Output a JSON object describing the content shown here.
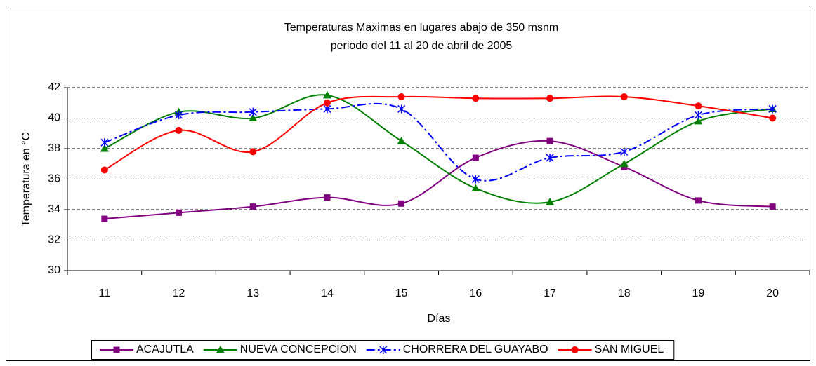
{
  "chart_data": {
    "type": "line",
    "title": "Temperaturas Maximas en lugares abajo de 350 msnm",
    "subtitle": "periodo del 11 al 20 de abril de 2005",
    "x_label": "Días",
    "y_label": "Temperatura en °C",
    "categories": [
      "11",
      "12",
      "13",
      "14",
      "15",
      "16",
      "17",
      "18",
      "19",
      "20"
    ],
    "ylim": [
      30,
      42
    ],
    "yticks": [
      30,
      32,
      34,
      36,
      38,
      40,
      42
    ],
    "grid": true,
    "smooth": true,
    "legend": "bottom",
    "series": [
      {
        "name": "ACAJUTLA",
        "color": "#800080",
        "marker": "square",
        "linestyle": "solid",
        "values": [
          33.4,
          33.8,
          34.2,
          34.8,
          34.4,
          37.4,
          38.5,
          36.8,
          34.6,
          34.2
        ]
      },
      {
        "name": "NUEVA CONCEPCION",
        "color": "#008000",
        "marker": "triangle",
        "linestyle": "solid",
        "values": [
          38.0,
          40.4,
          40.0,
          41.5,
          38.5,
          35.4,
          34.5,
          37.0,
          39.8,
          40.6
        ]
      },
      {
        "name": "CHORRERA DEL GUAYABO",
        "color": "#0000ff",
        "marker": "asterisk",
        "linestyle": "dashdot",
        "values": [
          38.4,
          40.2,
          40.4,
          40.6,
          40.6,
          36.0,
          37.4,
          37.8,
          40.2,
          40.6
        ]
      },
      {
        "name": "SAN MIGUEL",
        "color": "#ff0000",
        "marker": "circle",
        "linestyle": "solid",
        "values": [
          36.6,
          39.2,
          37.8,
          41.0,
          41.4,
          41.3,
          41.3,
          41.4,
          40.8,
          40.0
        ]
      }
    ]
  }
}
